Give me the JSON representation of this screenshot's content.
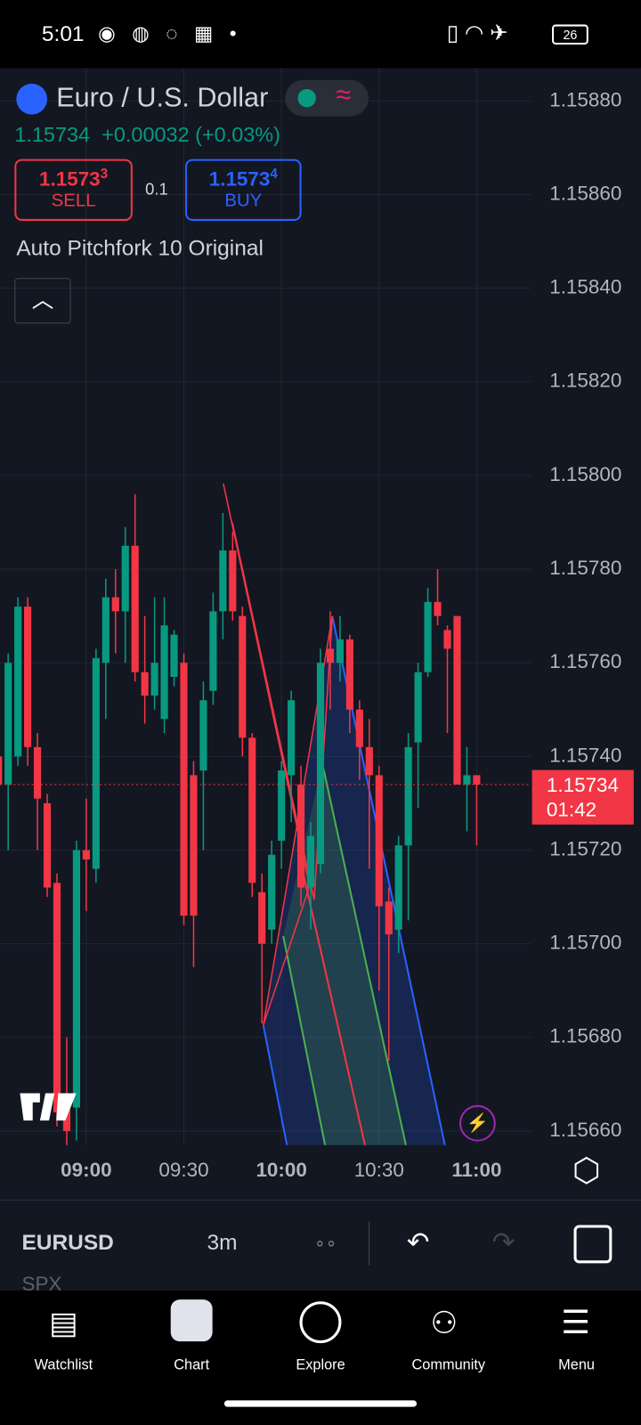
{
  "status_bar": {
    "time": "5:01",
    "battery": "26"
  },
  "header": {
    "symbol_name": "Euro / U.S. Dollar",
    "price": "1.15734",
    "change": "+0.00032 (+0.03%)"
  },
  "trade": {
    "sell_price": "1.1573",
    "sell_pip": "3",
    "sell_label": "SELL",
    "spread": "0.1",
    "buy_price": "1.1573",
    "buy_pip": "4",
    "buy_label": "BUY"
  },
  "indicator": {
    "name": "Auto Pitchfork 10 Original"
  },
  "toolbar": {
    "symbol": "EURUSD",
    "interval": "3m",
    "next_symbol": "SPX"
  },
  "nav": [
    "Watchlist",
    "Chart",
    "Explore",
    "Community",
    "Menu"
  ],
  "chart_data": {
    "type": "candlestick",
    "categories": [
      null,
      null,
      null,
      null,
      null,
      null,
      null,
      null,
      null,
      "09:00",
      null,
      null,
      null,
      null,
      null,
      null,
      null,
      null,
      null,
      "09:30",
      null,
      null,
      null,
      null,
      null,
      null,
      null,
      null,
      null,
      "10:00",
      null,
      null,
      null,
      null,
      null,
      null,
      null,
      null,
      null,
      "10:30",
      null,
      null,
      null,
      null,
      null,
      null,
      null,
      null,
      null,
      "11:00"
    ],
    "open": [
      1.1574,
      1.15734,
      1.1574,
      1.15772,
      1.15742,
      1.1573,
      1.15713,
      1.15666,
      1.15665,
      1.1572,
      1.15716,
      1.1576,
      1.15774,
      1.15771,
      1.15785,
      1.15758,
      1.15753,
      1.15748,
      1.15757,
      1.1576,
      1.15736,
      1.15737,
      1.15754,
      1.15771,
      1.15784,
      1.1577,
      1.15744,
      1.15711,
      1.15703,
      1.15722,
      1.15736,
      1.15734,
      1.15712,
      1.15717,
      1.15763,
      1.1576,
      1.15765,
      1.1575,
      1.15742,
      1.15736,
      1.15709,
      1.15703,
      1.15721,
      1.15743,
      1.15758,
      1.15773,
      1.15767,
      1.1577,
      1.15734,
      1.15736
    ],
    "high": [
      1.15745,
      1.15762,
      1.15774,
      1.15774,
      1.15745,
      1.15732,
      1.15715,
      1.1568,
      1.15722,
      1.15731,
      1.15763,
      1.15778,
      1.1578,
      1.15789,
      1.15796,
      1.1577,
      1.15774,
      1.15774,
      1.15767,
      1.15762,
      1.15739,
      1.15756,
      1.15775,
      1.15792,
      1.15788,
      1.15772,
      1.15745,
      1.15715,
      1.15722,
      1.15739,
      1.15754,
      1.15738,
      1.15726,
      1.15763,
      1.15771,
      1.1577,
      1.15766,
      1.15752,
      1.15748,
      1.15738,
      1.15712,
      1.15723,
      1.15745,
      1.1576,
      1.15776,
      1.1578,
      1.15768,
      1.1577,
      1.15742,
      1.15736
    ],
    "low": [
      1.15728,
      1.1572,
      1.15738,
      1.15738,
      1.1572,
      1.1571,
      1.15661,
      1.15657,
      1.15658,
      1.15707,
      1.15713,
      1.15748,
      1.15762,
      1.1576,
      1.15756,
      1.15747,
      1.1575,
      1.15745,
      1.15755,
      1.15704,
      1.15695,
      1.1572,
      1.15751,
      1.15765,
      1.15769,
      1.1574,
      1.1571,
      1.15683,
      1.157,
      1.15716,
      1.15726,
      1.15708,
      1.15703,
      1.15715,
      1.1575,
      1.15756,
      1.15745,
      1.15735,
      1.15716,
      1.1569,
      1.15675,
      1.15698,
      1.15705,
      1.15729,
      1.15757,
      1.15768,
      1.15745,
      1.15734,
      1.15724,
      1.15721
    ],
    "close": [
      1.15734,
      1.1576,
      1.15772,
      1.15742,
      1.15731,
      1.15712,
      1.15664,
      1.1566,
      1.1572,
      1.15718,
      1.15761,
      1.15774,
      1.15771,
      1.15785,
      1.15758,
      1.15753,
      1.1576,
      1.15768,
      1.15766,
      1.15706,
      1.15706,
      1.15752,
      1.15771,
      1.15784,
      1.15771,
      1.15744,
      1.15713,
      1.157,
      1.15719,
      1.15737,
      1.15752,
      1.15712,
      1.15723,
      1.1576,
      1.1576,
      1.15765,
      1.1575,
      1.15742,
      1.15736,
      1.15708,
      1.15702,
      1.15721,
      1.15742,
      1.15758,
      1.15773,
      1.1577,
      1.15763,
      1.15734,
      1.15736,
      1.15734
    ],
    "up_color": "#089981",
    "down_color": "#f23645",
    "ylim": [
      1.15657,
      1.15887
    ],
    "yticks": [
      {
        "value": 1.1588,
        "label": "1.15880"
      },
      {
        "value": 1.1586,
        "label": "1.15860"
      },
      {
        "value": 1.1584,
        "label": "1.15840"
      },
      {
        "value": 1.1582,
        "label": "1.15820"
      },
      {
        "value": 1.158,
        "label": "1.15800"
      },
      {
        "value": 1.1578,
        "label": "1.15780"
      },
      {
        "value": 1.1576,
        "label": "1.15760"
      },
      {
        "value": 1.1574,
        "label": "1.15740"
      },
      {
        "value": 1.1572,
        "label": "1.15720"
      },
      {
        "value": 1.157,
        "label": "1.15700"
      },
      {
        "value": 1.1568,
        "label": "1.15680"
      },
      {
        "value": 1.1566,
        "label": "1.15660"
      }
    ],
    "last_price": 1.15734,
    "countdown": "01:42",
    "grid": true
  }
}
